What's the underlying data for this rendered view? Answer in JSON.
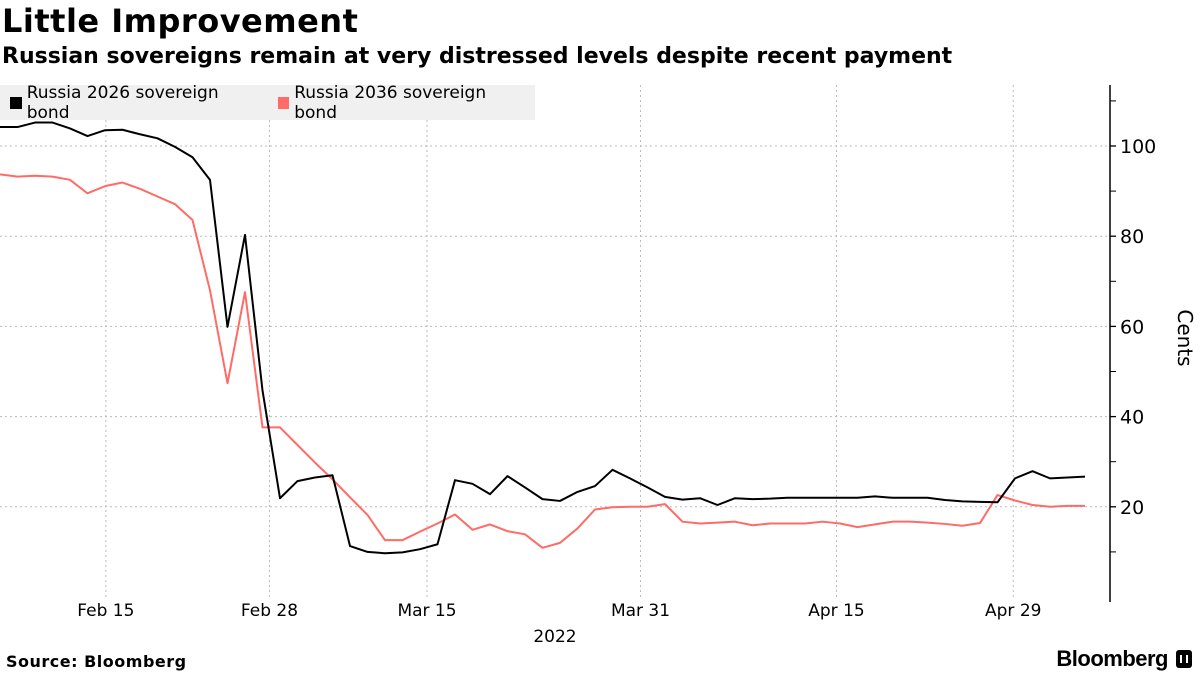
{
  "chart_data": {
    "type": "line",
    "title": "Little Improvement",
    "subtitle": "Russian sovereigns remain at very distressed levels despite recent payment",
    "xlabel": "2022",
    "ylabel": "Cents",
    "ylim": [
      0,
      113
    ],
    "y_ticks": [
      20,
      40,
      60,
      80,
      100
    ],
    "y_minor_ticks": [
      10,
      30,
      50,
      70,
      90,
      110
    ],
    "x_ticks": [
      {
        "label": "Feb 15",
        "index": 6.05
      },
      {
        "label": "Feb 28",
        "index": 15.4
      },
      {
        "label": "Mar 15",
        "index": 24.4
      },
      {
        "label": "Mar 31",
        "index": 36.6
      },
      {
        "label": "Apr 15",
        "index": 47.8
      },
      {
        "label": "Apr 29",
        "index": 57.9
      }
    ],
    "grid": true,
    "legend_placement": "top-left",
    "series": [
      {
        "name": "Russia 2026 sovereign bond",
        "color": "#000000",
        "values": [
          104.2,
          104.2,
          105.2,
          105.2,
          103.9,
          102.2,
          103.5,
          103.6,
          102.6,
          101.7,
          99.8,
          97.5,
          92.5,
          59.9,
          80.3,
          45.8,
          21.9,
          25.7,
          26.5,
          27.0,
          11.3,
          10.0,
          9.7,
          9.9,
          10.6,
          11.7,
          25.9,
          25.1,
          22.8,
          26.8,
          24.3,
          21.7,
          21.3,
          23.3,
          24.6,
          28.2,
          26.3,
          24.3,
          22.2,
          21.6,
          21.9,
          20.4,
          21.9,
          21.7,
          21.8,
          22.0,
          22.0,
          22.0,
          22.0,
          22.0,
          22.3,
          22.0,
          22.0,
          22.0,
          21.5,
          21.2,
          21.1,
          21.0,
          26.3,
          27.9,
          26.3,
          26.5,
          26.7
        ]
      },
      {
        "name": "Russia 2036 sovereign bond",
        "color": "#ff6b66",
        "values": [
          93.7,
          93.2,
          93.4,
          93.2,
          92.5,
          89.5,
          91.1,
          91.9,
          90.5,
          88.8,
          87.1,
          83.6,
          68.0,
          47.4,
          67.6,
          37.6,
          37.6,
          33.7,
          29.8,
          26.1,
          22.1,
          18.2,
          12.6,
          12.6,
          14.5,
          16.3,
          18.3,
          14.9,
          16.1,
          14.6,
          13.9,
          10.9,
          12.0,
          15.2,
          19.4,
          19.9,
          20.0,
          20.0,
          20.6,
          16.7,
          16.3,
          16.5,
          16.7,
          15.9,
          16.3,
          16.3,
          16.3,
          16.7,
          16.3,
          15.5,
          16.1,
          16.7,
          16.7,
          16.5,
          16.2,
          15.8,
          16.4,
          22.6,
          21.4,
          20.4,
          20.0,
          20.2,
          20.2
        ]
      }
    ]
  },
  "footer": {
    "source": "Source: Bloomberg",
    "brand": "Bloomberg"
  }
}
